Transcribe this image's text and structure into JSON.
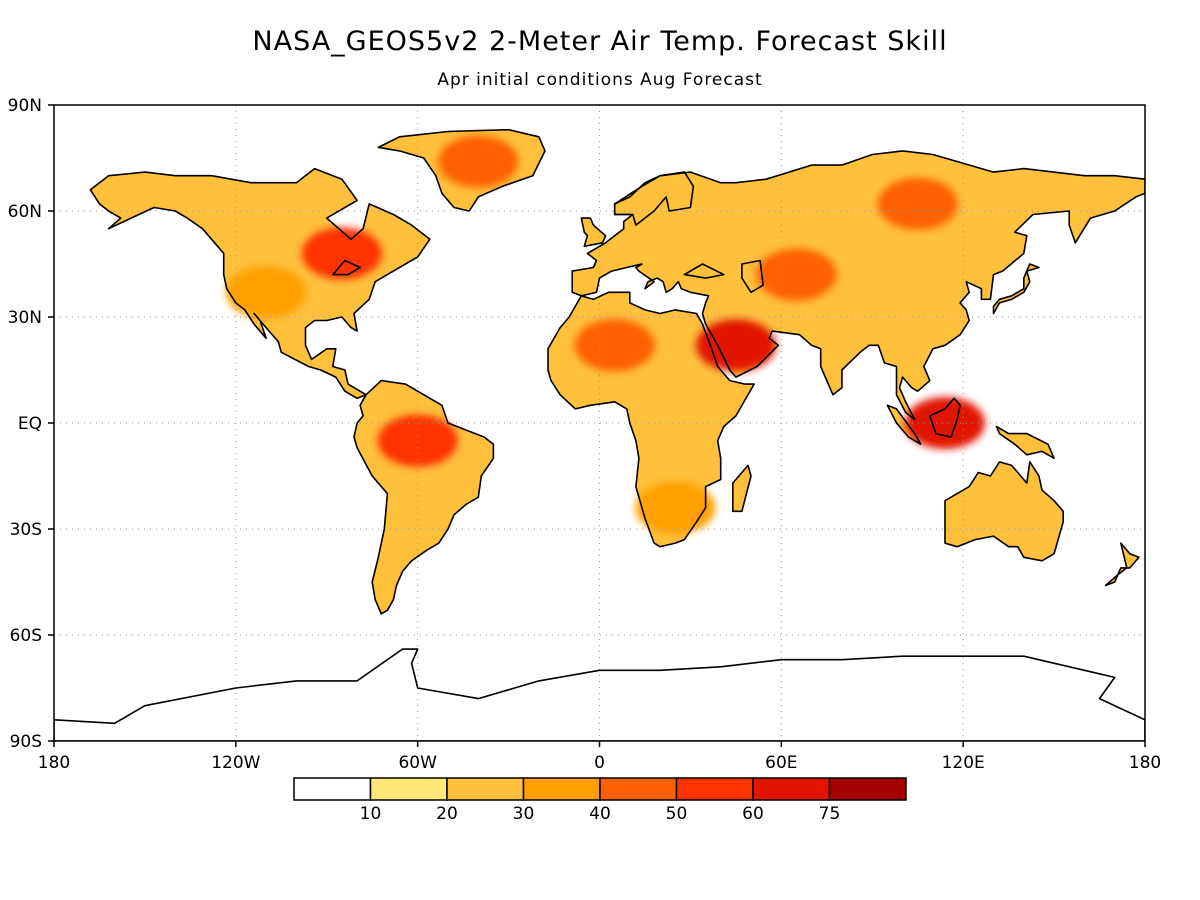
{
  "title": "NASA_GEOS5v2 2-Meter Air Temp. Forecast Skill",
  "subtitle": "Apr initial conditions   Aug Forecast",
  "map": {
    "projection": "cylindrical equidistant",
    "lon_range": [
      -180,
      180
    ],
    "lat_range": [
      -90,
      90
    ],
    "gridlines": "dotted",
    "lon_ticks": [
      {
        "lon": -180,
        "label": "180"
      },
      {
        "lon": -120,
        "label": "120W"
      },
      {
        "lon": -60,
        "label": "60W"
      },
      {
        "lon": 0,
        "label": "0"
      },
      {
        "lon": 60,
        "label": "60E"
      },
      {
        "lon": 120,
        "label": "120E"
      },
      {
        "lon": 180,
        "label": "180"
      }
    ],
    "lat_ticks": [
      {
        "lat": 90,
        "label": "90N"
      },
      {
        "lat": 60,
        "label": "60N"
      },
      {
        "lat": 30,
        "label": "30N"
      },
      {
        "lat": 0,
        "label": "EQ"
      },
      {
        "lat": -30,
        "label": "30S"
      },
      {
        "lat": -60,
        "label": "60S"
      },
      {
        "lat": -90,
        "label": "90S"
      }
    ]
  },
  "colorbar": {
    "colors": [
      "#ffffff",
      "#ffe878",
      "#ffc03c",
      "#ffa000",
      "#ff6000",
      "#ff3200",
      "#e11400",
      "#a50000"
    ],
    "labels": [
      "10",
      "20",
      "30",
      "40",
      "50",
      "60",
      "75"
    ]
  },
  "chart_data": {
    "type": "heatmap",
    "variable": "2-Meter Air Temp. Forecast Skill",
    "levels": [
      10,
      20,
      30,
      40,
      50,
      60,
      75
    ],
    "regions": [
      {
        "region": "North America interior",
        "lon": -85,
        "lat": 48,
        "value": 50
      },
      {
        "region": "Western US",
        "lon": -110,
        "lat": 37,
        "value": 35
      },
      {
        "region": "Greenland",
        "lon": -40,
        "lat": 74,
        "value": 45
      },
      {
        "region": "Amazon",
        "lon": -60,
        "lat": -5,
        "value": 50
      },
      {
        "region": "Sahara",
        "lon": 5,
        "lat": 22,
        "value": 40
      },
      {
        "region": "Arabian Peninsula",
        "lon": 45,
        "lat": 22,
        "value": 65
      },
      {
        "region": "Central Asia",
        "lon": 65,
        "lat": 42,
        "value": 45
      },
      {
        "region": "Siberia",
        "lon": 105,
        "lat": 62,
        "value": 40
      },
      {
        "region": "Borneo",
        "lon": 114,
        "lat": 0,
        "value": 60
      },
      {
        "region": "Southern Africa",
        "lon": 25,
        "lat": -24,
        "value": 35
      },
      {
        "region": "Australia",
        "lon": 135,
        "lat": -25,
        "value": 25
      }
    ]
  }
}
